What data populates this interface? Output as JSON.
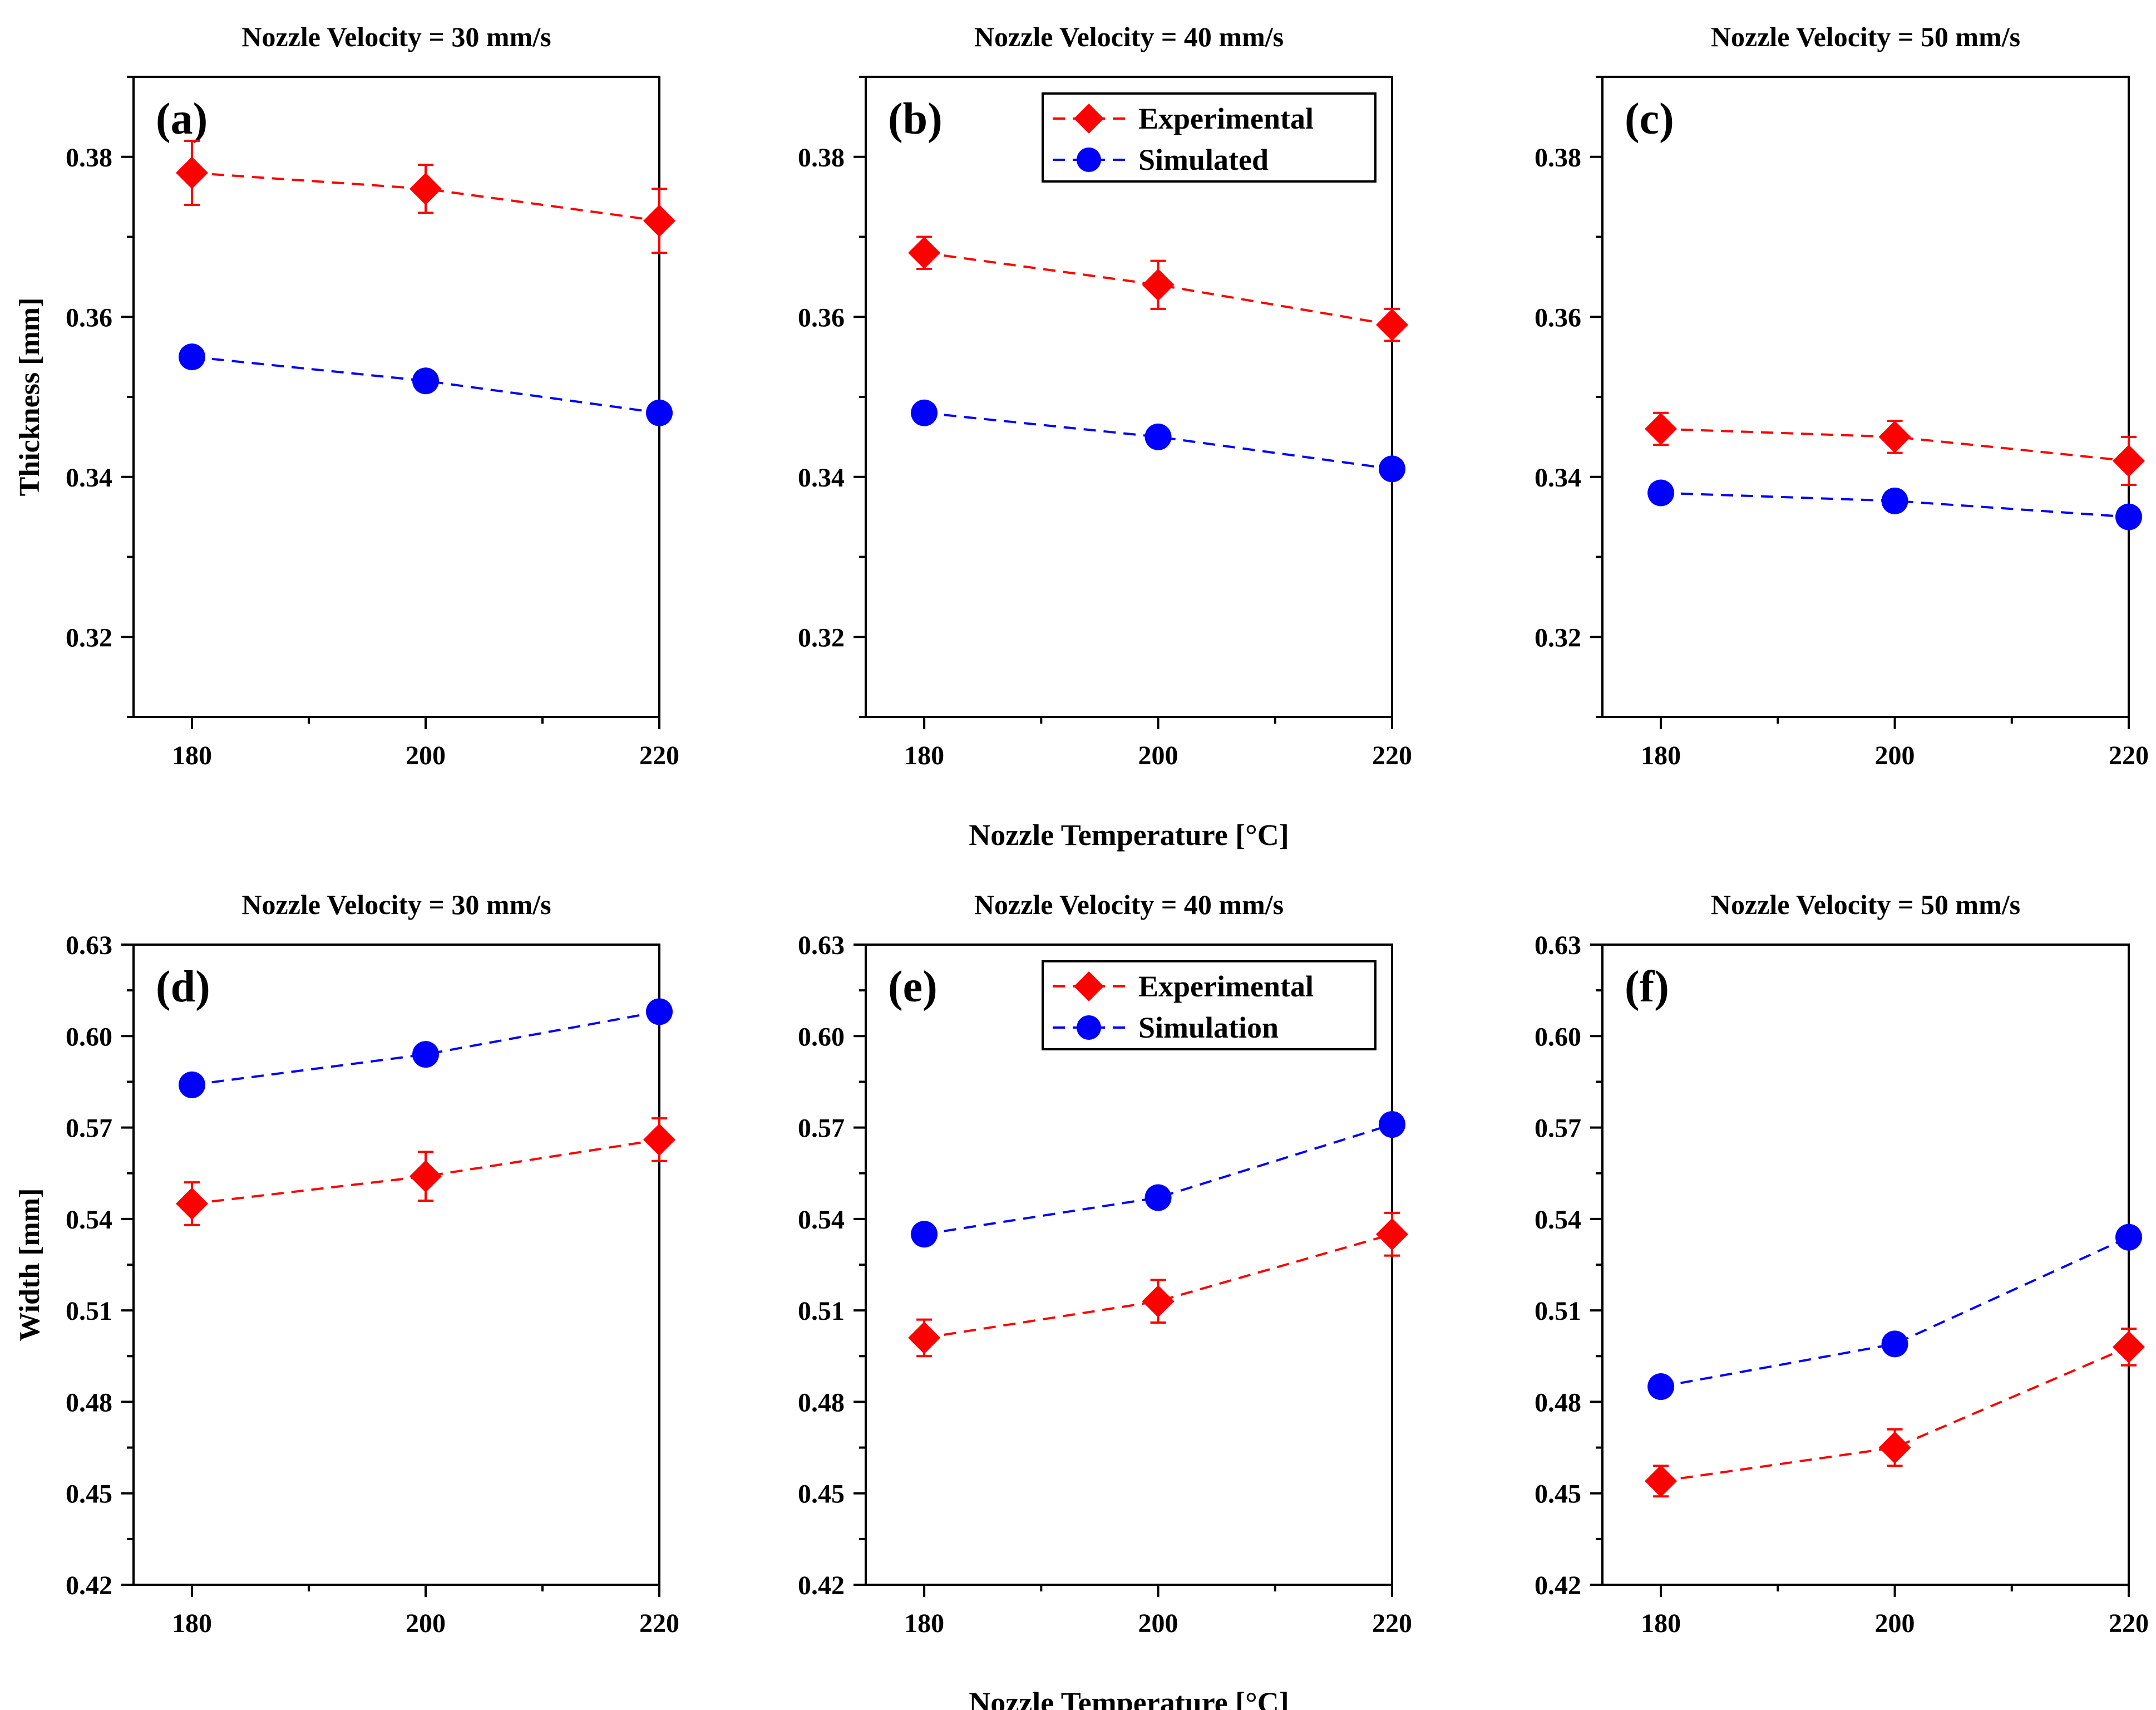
{
  "chart_data": [
    {
      "id": "a",
      "type": "line",
      "panel_label": "(a)",
      "title": "Nozzle Velocity = 30 mm/s",
      "xlabel": "",
      "ylabel": "Thickness  [mm]",
      "x": [
        180,
        200,
        220
      ],
      "xlim": [
        175,
        220
      ],
      "xticks": [
        "180",
        "200",
        "220"
      ],
      "ylim": [
        0.31,
        0.39
      ],
      "yticks": [
        "0.32",
        "0.34",
        "0.36",
        "0.38"
      ],
      "legend": null,
      "series": [
        {
          "name": "Experimental",
          "marker": "diamond",
          "color": "#ff0000",
          "values": [
            0.378,
            0.376,
            0.372
          ],
          "errors": [
            0.004,
            0.003,
            0.004
          ]
        },
        {
          "name": "Simulated",
          "marker": "circle",
          "color": "#0000ff",
          "values": [
            0.355,
            0.352,
            0.348
          ],
          "errors": [
            0,
            0,
            0
          ]
        }
      ]
    },
    {
      "id": "b",
      "type": "line",
      "panel_label": "(b)",
      "title": "Nozzle Velocity = 40 mm/s",
      "xlabel": "Nozzle Temperature  [°C]",
      "ylabel": "",
      "x": [
        180,
        200,
        220
      ],
      "xlim": [
        175,
        220
      ],
      "xticks": [
        "180",
        "200",
        "220"
      ],
      "ylim": [
        0.31,
        0.39
      ],
      "yticks": [
        "0.32",
        "0.34",
        "0.36",
        "0.38"
      ],
      "legend": {
        "position": "top-right",
        "entries": [
          "Experimental",
          "Simulated"
        ]
      },
      "series": [
        {
          "name": "Experimental",
          "marker": "diamond",
          "color": "#ff0000",
          "values": [
            0.368,
            0.364,
            0.359
          ],
          "errors": [
            0.002,
            0.003,
            0.002
          ]
        },
        {
          "name": "Simulated",
          "marker": "circle",
          "color": "#0000ff",
          "values": [
            0.348,
            0.345,
            0.341
          ],
          "errors": [
            0,
            0,
            0
          ]
        }
      ]
    },
    {
      "id": "c",
      "type": "line",
      "panel_label": "(c)",
      "title": "Nozzle Velocity = 50 mm/s",
      "xlabel": "",
      "ylabel": "",
      "x": [
        180,
        200,
        220
      ],
      "xlim": [
        175,
        220
      ],
      "xticks": [
        "180",
        "200",
        "220"
      ],
      "ylim": [
        0.31,
        0.39
      ],
      "yticks": [
        "0.32",
        "0.34",
        "0.36",
        "0.38"
      ],
      "legend": null,
      "series": [
        {
          "name": "Experimental",
          "marker": "diamond",
          "color": "#ff0000",
          "values": [
            0.346,
            0.345,
            0.342
          ],
          "errors": [
            0.002,
            0.002,
            0.003
          ]
        },
        {
          "name": "Simulated",
          "marker": "circle",
          "color": "#0000ff",
          "values": [
            0.338,
            0.337,
            0.335
          ],
          "errors": [
            0,
            0,
            0
          ]
        }
      ]
    },
    {
      "id": "d",
      "type": "line",
      "panel_label": "(d)",
      "title": "Nozzle Velocity = 30 mm/s",
      "xlabel": "",
      "ylabel": "Width  [mm]",
      "x": [
        180,
        200,
        220
      ],
      "xlim": [
        175,
        220
      ],
      "xticks": [
        "180",
        "200",
        "220"
      ],
      "ylim": [
        0.42,
        0.63
      ],
      "yticks": [
        "0.42",
        "0.45",
        "0.48",
        "0.51",
        "0.54",
        "0.57",
        "0.60",
        "0.63"
      ],
      "legend": null,
      "series": [
        {
          "name": "Experimental",
          "marker": "diamond",
          "color": "#ff0000",
          "values": [
            0.545,
            0.554,
            0.566
          ],
          "errors": [
            0.007,
            0.008,
            0.007
          ]
        },
        {
          "name": "Simulation",
          "marker": "circle",
          "color": "#0000ff",
          "values": [
            0.584,
            0.594,
            0.608
          ],
          "errors": [
            0,
            0,
            0
          ]
        }
      ]
    },
    {
      "id": "e",
      "type": "line",
      "panel_label": "(e)",
      "title": "Nozzle Velocity = 40 mm/s",
      "xlabel": "Nozzle Temperature  [°C]",
      "ylabel": "",
      "x": [
        180,
        200,
        220
      ],
      "xlim": [
        175,
        220
      ],
      "xticks": [
        "180",
        "200",
        "220"
      ],
      "ylim": [
        0.42,
        0.63
      ],
      "yticks": [
        "0.42",
        "0.45",
        "0.48",
        "0.51",
        "0.54",
        "0.57",
        "0.60",
        "0.63"
      ],
      "legend": {
        "position": "top-right",
        "entries": [
          "Experimental",
          "Simulation"
        ]
      },
      "series": [
        {
          "name": "Experimental",
          "marker": "diamond",
          "color": "#ff0000",
          "values": [
            0.501,
            0.513,
            0.535
          ],
          "errors": [
            0.006,
            0.007,
            0.007
          ]
        },
        {
          "name": "Simulation",
          "marker": "circle",
          "color": "#0000ff",
          "values": [
            0.535,
            0.547,
            0.571
          ],
          "errors": [
            0,
            0,
            0
          ]
        }
      ]
    },
    {
      "id": "f",
      "type": "line",
      "panel_label": "(f)",
      "title": "Nozzle Velocity = 50 mm/s",
      "xlabel": "",
      "ylabel": "",
      "x": [
        180,
        200,
        220
      ],
      "xlim": [
        175,
        220
      ],
      "xticks": [
        "180",
        "200",
        "220"
      ],
      "ylim": [
        0.42,
        0.63
      ],
      "yticks": [
        "0.42",
        "0.45",
        "0.48",
        "0.51",
        "0.54",
        "0.57",
        "0.60",
        "0.63"
      ],
      "legend": null,
      "series": [
        {
          "name": "Experimental",
          "marker": "diamond",
          "color": "#ff0000",
          "values": [
            0.454,
            0.465,
            0.498
          ],
          "errors": [
            0.005,
            0.006,
            0.006
          ]
        },
        {
          "name": "Simulation",
          "marker": "circle",
          "color": "#0000ff",
          "values": [
            0.485,
            0.499,
            0.534
          ],
          "errors": [
            0,
            0,
            0
          ]
        }
      ]
    }
  ]
}
